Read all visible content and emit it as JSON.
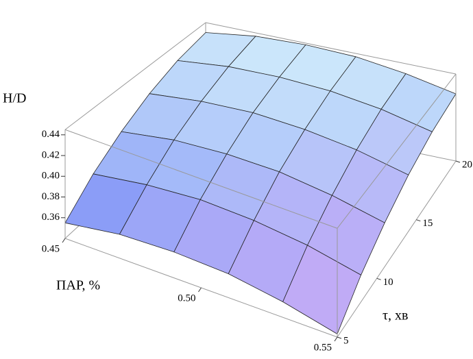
{
  "chart_data": {
    "type": "surface",
    "xlabel": "ПАР, %",
    "ylabel": "τ, хв",
    "zlabel": "H/D",
    "x": [
      0.45,
      0.47,
      0.49,
      0.51,
      0.53,
      0.55
    ],
    "y": [
      5,
      8,
      11,
      14,
      17,
      20
    ],
    "z": [
      [
        0.355,
        0.379,
        0.398,
        0.414,
        0.426,
        0.433
      ],
      [
        0.363,
        0.386,
        0.406,
        0.421,
        0.433,
        0.441
      ],
      [
        0.365,
        0.389,
        0.408,
        0.424,
        0.435,
        0.443
      ],
      [
        0.363,
        0.386,
        0.406,
        0.421,
        0.433,
        0.441
      ],
      [
        0.355,
        0.379,
        0.398,
        0.414,
        0.426,
        0.433
      ],
      [
        0.343,
        0.367,
        0.386,
        0.402,
        0.414,
        0.421
      ]
    ],
    "xlim": [
      0.45,
      0.55
    ],
    "xticks": [
      0.45,
      {
        "value": 0.5,
        "label": "0.50"
      },
      0.55
    ],
    "ylim": [
      5,
      20
    ],
    "yticks": [
      5,
      10,
      15,
      20
    ],
    "zlim": [
      0.34,
      0.445
    ],
    "zticks": [
      0.36,
      0.38,
      {
        "value": 0.4,
        "label": "0.40"
      },
      0.42,
      0.44
    ],
    "colormap": [
      "#6d7cf6",
      "#d2eefb",
      "#d8b4f6"
    ]
  }
}
